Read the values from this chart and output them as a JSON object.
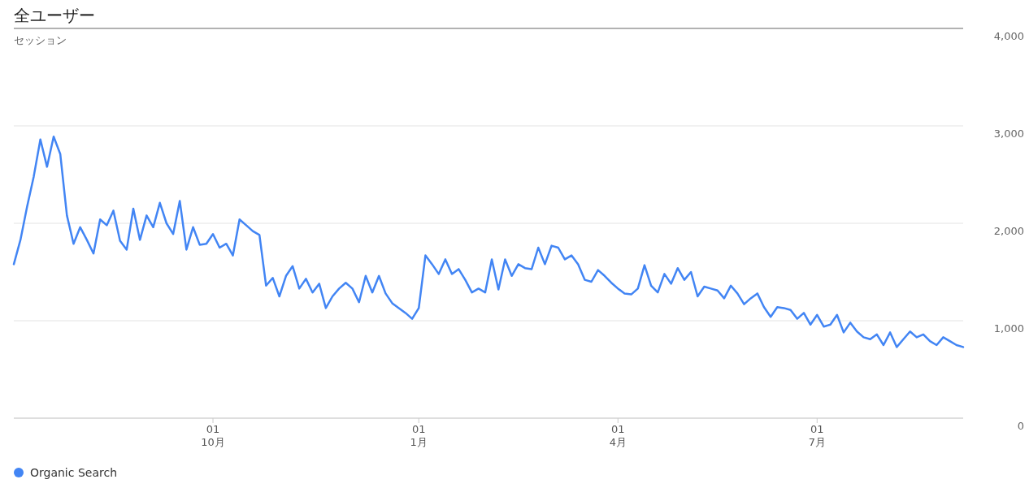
{
  "chart_data": {
    "type": "line",
    "title": "全ユーザー",
    "annotations": [
      "セッション"
    ],
    "categories": [
      null,
      null,
      null,
      null,
      null,
      null,
      null,
      null,
      null,
      null,
      null,
      null,
      null,
      null,
      null,
      null,
      null,
      null,
      null,
      null,
      null,
      null,
      null,
      null,
      null,
      null,
      null,
      null,
      null,
      null,
      "01\n10月",
      null,
      null,
      null,
      null,
      null,
      null,
      null,
      null,
      null,
      null,
      null,
      null,
      null,
      null,
      null,
      null,
      null,
      null,
      null,
      null,
      null,
      null,
      null,
      null,
      null,
      null,
      null,
      null,
      null,
      null,
      "01\n1月",
      null,
      null,
      null,
      null,
      null,
      null,
      null,
      null,
      null,
      null,
      null,
      null,
      null,
      null,
      null,
      null,
      null,
      null,
      null,
      null,
      null,
      null,
      null,
      null,
      null,
      null,
      null,
      null,
      null,
      "01\n4月",
      null,
      null,
      null,
      null,
      null,
      null,
      null,
      null,
      null,
      null,
      null,
      null,
      null,
      null,
      null,
      null,
      null,
      null,
      null,
      null,
      null,
      null,
      null,
      null,
      null,
      null,
      null,
      null,
      null,
      "01\n7月",
      null,
      null,
      null,
      null,
      null,
      null,
      null,
      null,
      null,
      null,
      null,
      null,
      null,
      null,
      null,
      null,
      null,
      null,
      null,
      null,
      null,
      null
    ],
    "series": [
      {
        "name": "Organic Search",
        "color": "#4285f4",
        "values": [
          1580,
          1830,
          2170,
          2480,
          2860,
          2580,
          2890,
          2710,
          2080,
          1790,
          1960,
          1830,
          1690,
          2040,
          1980,
          2130,
          1820,
          1730,
          2150,
          1830,
          2080,
          1960,
          2210,
          2000,
          1890,
          2230,
          1730,
          1960,
          1780,
          1790,
          1890,
          1750,
          1790,
          1670,
          2040,
          1980,
          1920,
          1880,
          1360,
          1440,
          1250,
          1460,
          1560,
          1330,
          1430,
          1290,
          1380,
          1130,
          1250,
          1330,
          1390,
          1330,
          1190,
          1460,
          1290,
          1460,
          1280,
          1180,
          1130,
          1080,
          1020,
          1130,
          1670,
          1580,
          1480,
          1630,
          1480,
          1530,
          1420,
          1290,
          1330,
          1290,
          1630,
          1320,
          1630,
          1460,
          1580,
          1540,
          1530,
          1750,
          1580,
          1770,
          1750,
          1630,
          1670,
          1580,
          1420,
          1400,
          1520,
          1460,
          1390,
          1330,
          1280,
          1270,
          1330,
          1570,
          1360,
          1290,
          1480,
          1380,
          1540,
          1420,
          1500,
          1250,
          1350,
          1330,
          1310,
          1230,
          1360,
          1280,
          1170,
          1230,
          1280,
          1140,
          1040,
          1140,
          1130,
          1110,
          1020,
          1080,
          960,
          1060,
          940,
          960,
          1060,
          880,
          980,
          890,
          830,
          810,
          860,
          750,
          880,
          730,
          810,
          890,
          830,
          860,
          790,
          750,
          830,
          790,
          750,
          730
        ]
      }
    ],
    "ylim": [
      0,
      4000
    ],
    "yticks": [
      0,
      {
        "value": 1000,
        "label": "1,000"
      },
      {
        "value": 2000,
        "label": "2,000"
      },
      {
        "value": 3000,
        "label": "3,000"
      },
      {
        "value": 4000,
        "label": "4,000"
      }
    ],
    "grid": "y",
    "legend": "bottom left",
    "marker": "none",
    "line_style": "solid"
  }
}
